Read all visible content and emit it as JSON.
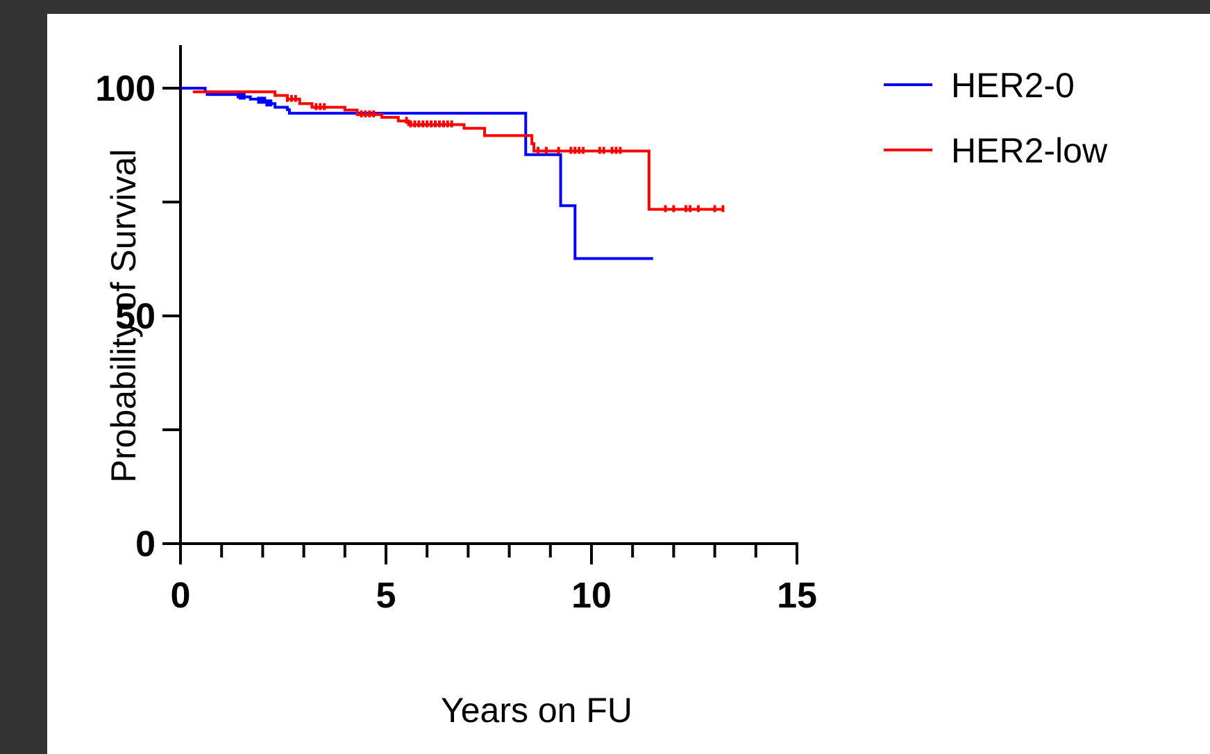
{
  "chart_data": {
    "type": "line",
    "title": "",
    "xlabel": "Years on FU",
    "ylabel": "Probability of Survival",
    "xlim": [
      0,
      15
    ],
    "ylim": [
      0,
      100
    ],
    "x_ticks": [
      0,
      5,
      10,
      15
    ],
    "x_tick_labels": [
      "0",
      "5",
      "10",
      "15"
    ],
    "x_minor_step": 1,
    "y_ticks": [
      0,
      50,
      100
    ],
    "y_tick_labels": [
      "0",
      "50",
      "100"
    ],
    "y_minor_step": 25,
    "grid": false,
    "legend_position": "top-right",
    "series": [
      {
        "name": "HER2-0",
        "color": "#0000ff",
        "step_points": [
          [
            0,
            100
          ],
          [
            0.6,
            99.2
          ],
          [
            0.65,
            98.6
          ],
          [
            1.3,
            98.6
          ],
          [
            1.4,
            98.1
          ],
          [
            1.7,
            97.6
          ],
          [
            1.9,
            97.2
          ],
          [
            2.1,
            96.6
          ],
          [
            2.3,
            95.8
          ],
          [
            2.6,
            95.3
          ],
          [
            2.65,
            94.5
          ],
          [
            4.5,
            94.5
          ],
          [
            8.4,
            94.5
          ],
          [
            8.4,
            85.4
          ],
          [
            9.25,
            85.4
          ],
          [
            9.25,
            74.2
          ],
          [
            9.6,
            74.2
          ],
          [
            9.6,
            62.6
          ],
          [
            11.5,
            62.6
          ]
        ],
        "censor_x": [
          1.45,
          1.5,
          1.55,
          1.9,
          1.95,
          2.0,
          2.05,
          2.1,
          2.15,
          2.2
        ]
      },
      {
        "name": "HER2-low",
        "color": "#ff0000",
        "step_points": [
          [
            0.3,
            99.2
          ],
          [
            1.0,
            99.2
          ],
          [
            2.25,
            99.2
          ],
          [
            2.3,
            98.4
          ],
          [
            2.6,
            97.6
          ],
          [
            2.9,
            96.6
          ],
          [
            3.2,
            95.8
          ],
          [
            4.0,
            95.2
          ],
          [
            4.3,
            94.2
          ],
          [
            4.9,
            93.6
          ],
          [
            5.3,
            92.8
          ],
          [
            5.55,
            92.0
          ],
          [
            6.9,
            91.2
          ],
          [
            7.4,
            89.6
          ],
          [
            8.3,
            89.6
          ],
          [
            8.55,
            87.8
          ],
          [
            8.6,
            86.2
          ],
          [
            11.35,
            86.2
          ],
          [
            11.4,
            73.4
          ],
          [
            13.2,
            73.4
          ]
        ],
        "censor_x": [
          2.6,
          2.7,
          2.8,
          3.3,
          3.4,
          3.5,
          4.4,
          4.5,
          4.6,
          4.7,
          5.5,
          5.6,
          5.7,
          5.8,
          5.9,
          6.0,
          6.1,
          6.2,
          6.3,
          6.4,
          6.5,
          6.6,
          8.7,
          8.9,
          9.2,
          9.5,
          9.6,
          9.7,
          9.8,
          10.2,
          10.3,
          10.5,
          10.6,
          10.7,
          11.8,
          12.0,
          12.3,
          12.4,
          12.6,
          13.0,
          13.2
        ]
      }
    ]
  }
}
